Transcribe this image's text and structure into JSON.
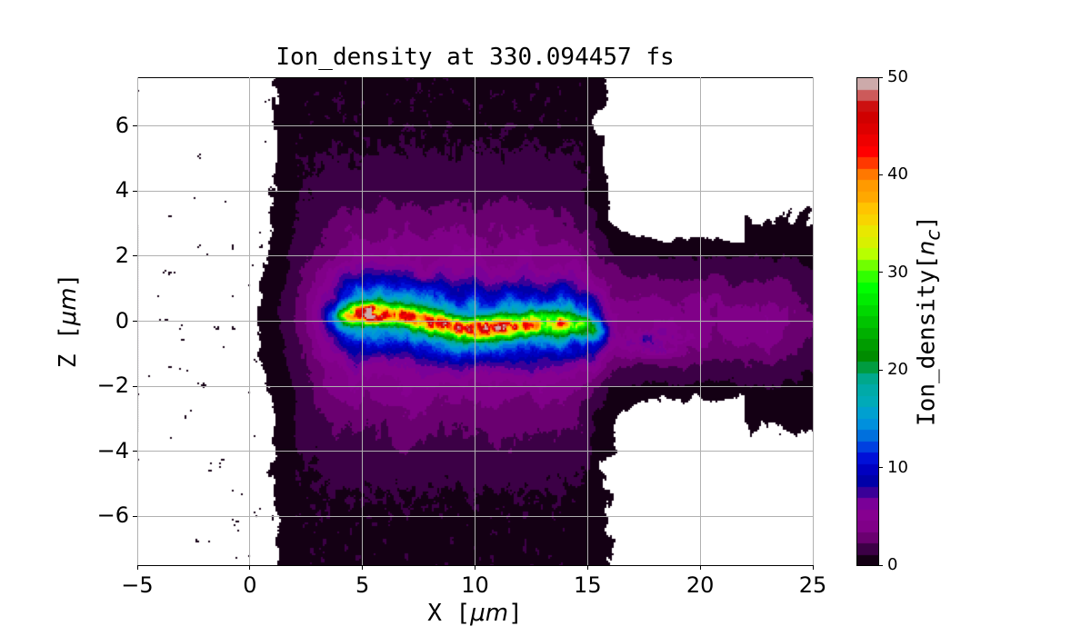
{
  "chart_data": {
    "type": "heatmap",
    "title": "Ion_density at 330.094457 fs",
    "xlabel_prefix": "X [",
    "xlabel_unit": "μm",
    "xlabel_suffix": "]",
    "ylabel_prefix": "Z [",
    "ylabel_unit": "μm",
    "ylabel_suffix": "]",
    "xlim": [
      -5,
      25
    ],
    "ylim": [
      -7.5,
      7.5
    ],
    "xticks": [
      "−5",
      "0",
      "5",
      "10",
      "15",
      "20",
      "25"
    ],
    "xtick_values": [
      -5,
      0,
      5,
      10,
      15,
      20,
      25
    ],
    "yticks": [
      "−6",
      "−4",
      "−2",
      "0",
      "2",
      "4",
      "6"
    ],
    "ytick_values": [
      -6,
      -4,
      -2,
      0,
      2,
      4,
      6
    ],
    "grid": true,
    "colorbar": {
      "label_prefix": "Ion_density[",
      "label_var": "n",
      "label_sub": "c",
      "label_suffix": "]",
      "range": [
        0,
        50
      ],
      "ticks": [
        "0",
        "10",
        "20",
        "30",
        "40",
        "50"
      ],
      "tick_values": [
        0,
        10,
        20,
        30,
        40,
        50
      ],
      "colors": [
        "#140014",
        "#3c0046",
        "#6a0070",
        "#800088",
        "#860090",
        "#7a0098",
        "#3a0098",
        "#0000a8",
        "#0000c0",
        "#0010d8",
        "#0040e0",
        "#0070dd",
        "#0090dd",
        "#00a0d0",
        "#00aab8",
        "#00aaa8",
        "#00a88c",
        "#009c40",
        "#008c00",
        "#009c00",
        "#00b000",
        "#00c400",
        "#00d800",
        "#00ec00",
        "#00ff00",
        "#30ff00",
        "#70ff00",
        "#b8ff00",
        "#d8f000",
        "#e8e800",
        "#f8d400",
        "#ffc400",
        "#ffa800",
        "#ff9a00",
        "#ff7800",
        "#ff3800",
        "#ff0000",
        "#ee0000",
        "#dd0000",
        "#d00000",
        "#cc1010",
        "#cc5a5a",
        "#ccaaaa"
      ]
    },
    "features": {
      "filament_x_range": [
        4,
        15.5
      ],
      "filament_peak_value": 45,
      "filament_z": 0,
      "background_level": 1
    }
  }
}
